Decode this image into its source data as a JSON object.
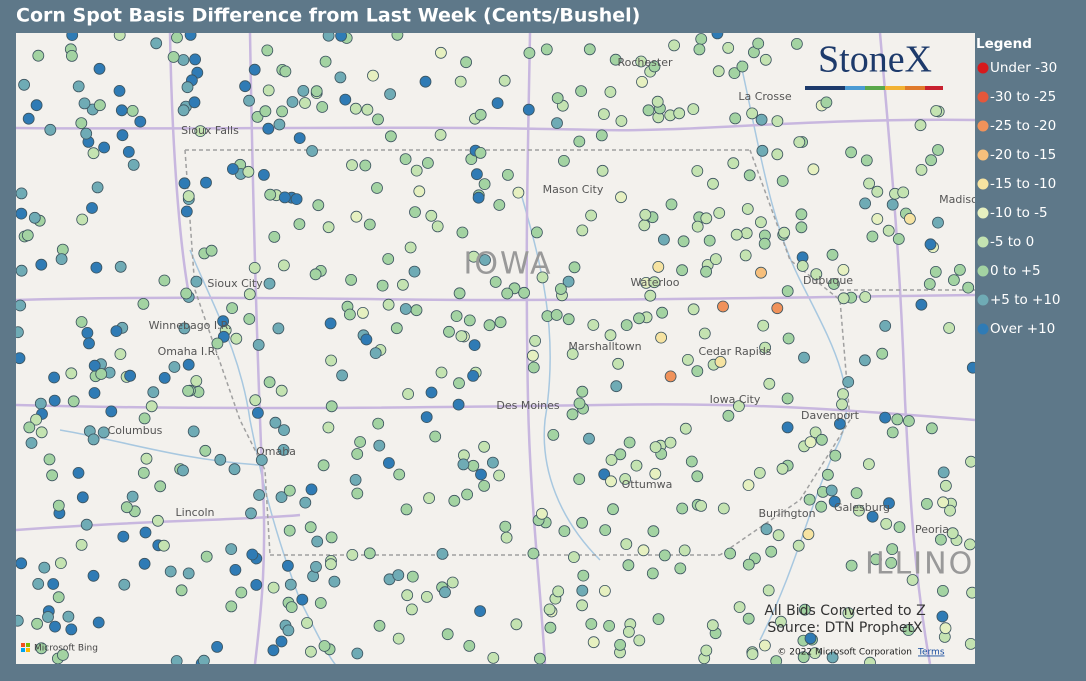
{
  "title": "Corn Spot Basis Difference from Last Week (Cents/Bushel)",
  "logo": "StoneX",
  "legend": {
    "title": "Legend",
    "items": [
      {
        "label": "Under -30",
        "color": "#d7191c"
      },
      {
        "label": "-30 to -25",
        "color": "#e5573b"
      },
      {
        "label": "-25 to -20",
        "color": "#f0925a"
      },
      {
        "label": "-20 to -15",
        "color": "#f6bf7c"
      },
      {
        "label": "-15 to -10",
        "color": "#f6e3a1"
      },
      {
        "label": "-10 to -5",
        "color": "#e6f0c0"
      },
      {
        "label": "-5 to 0",
        "color": "#c4e3b1"
      },
      {
        "label": "0 to +5",
        "color": "#a3d3a2"
      },
      {
        "label": "+5 to +10",
        "color": "#6fabb5"
      },
      {
        "label": "Over +10",
        "color": "#2f7bb5"
      }
    ]
  },
  "map": {
    "labels": [
      "Rochester",
      "La Crosse",
      "Sioux Falls",
      "Mason City",
      "IOWA",
      "Waterloo",
      "Dubuque",
      "Sioux City",
      "Winnebago I.R.",
      "Omaha I.R.",
      "Marshalltown",
      "Cedar Rapids",
      "Des Moines",
      "Iowa City",
      "Davenport",
      "Columbus",
      "Omaha",
      "Lincoln",
      "Ottumwa",
      "Burlington",
      "Galesburg",
      "Peoria",
      "ILLINO",
      "Madison"
    ]
  },
  "notes": [
    "All Bids Converted to Z",
    "Source: DTN ProphetX"
  ],
  "attribution": {
    "provider": "Microsoft Bing",
    "copyright": "© 2022 Microsoft Corporation",
    "terms": "Terms"
  }
}
